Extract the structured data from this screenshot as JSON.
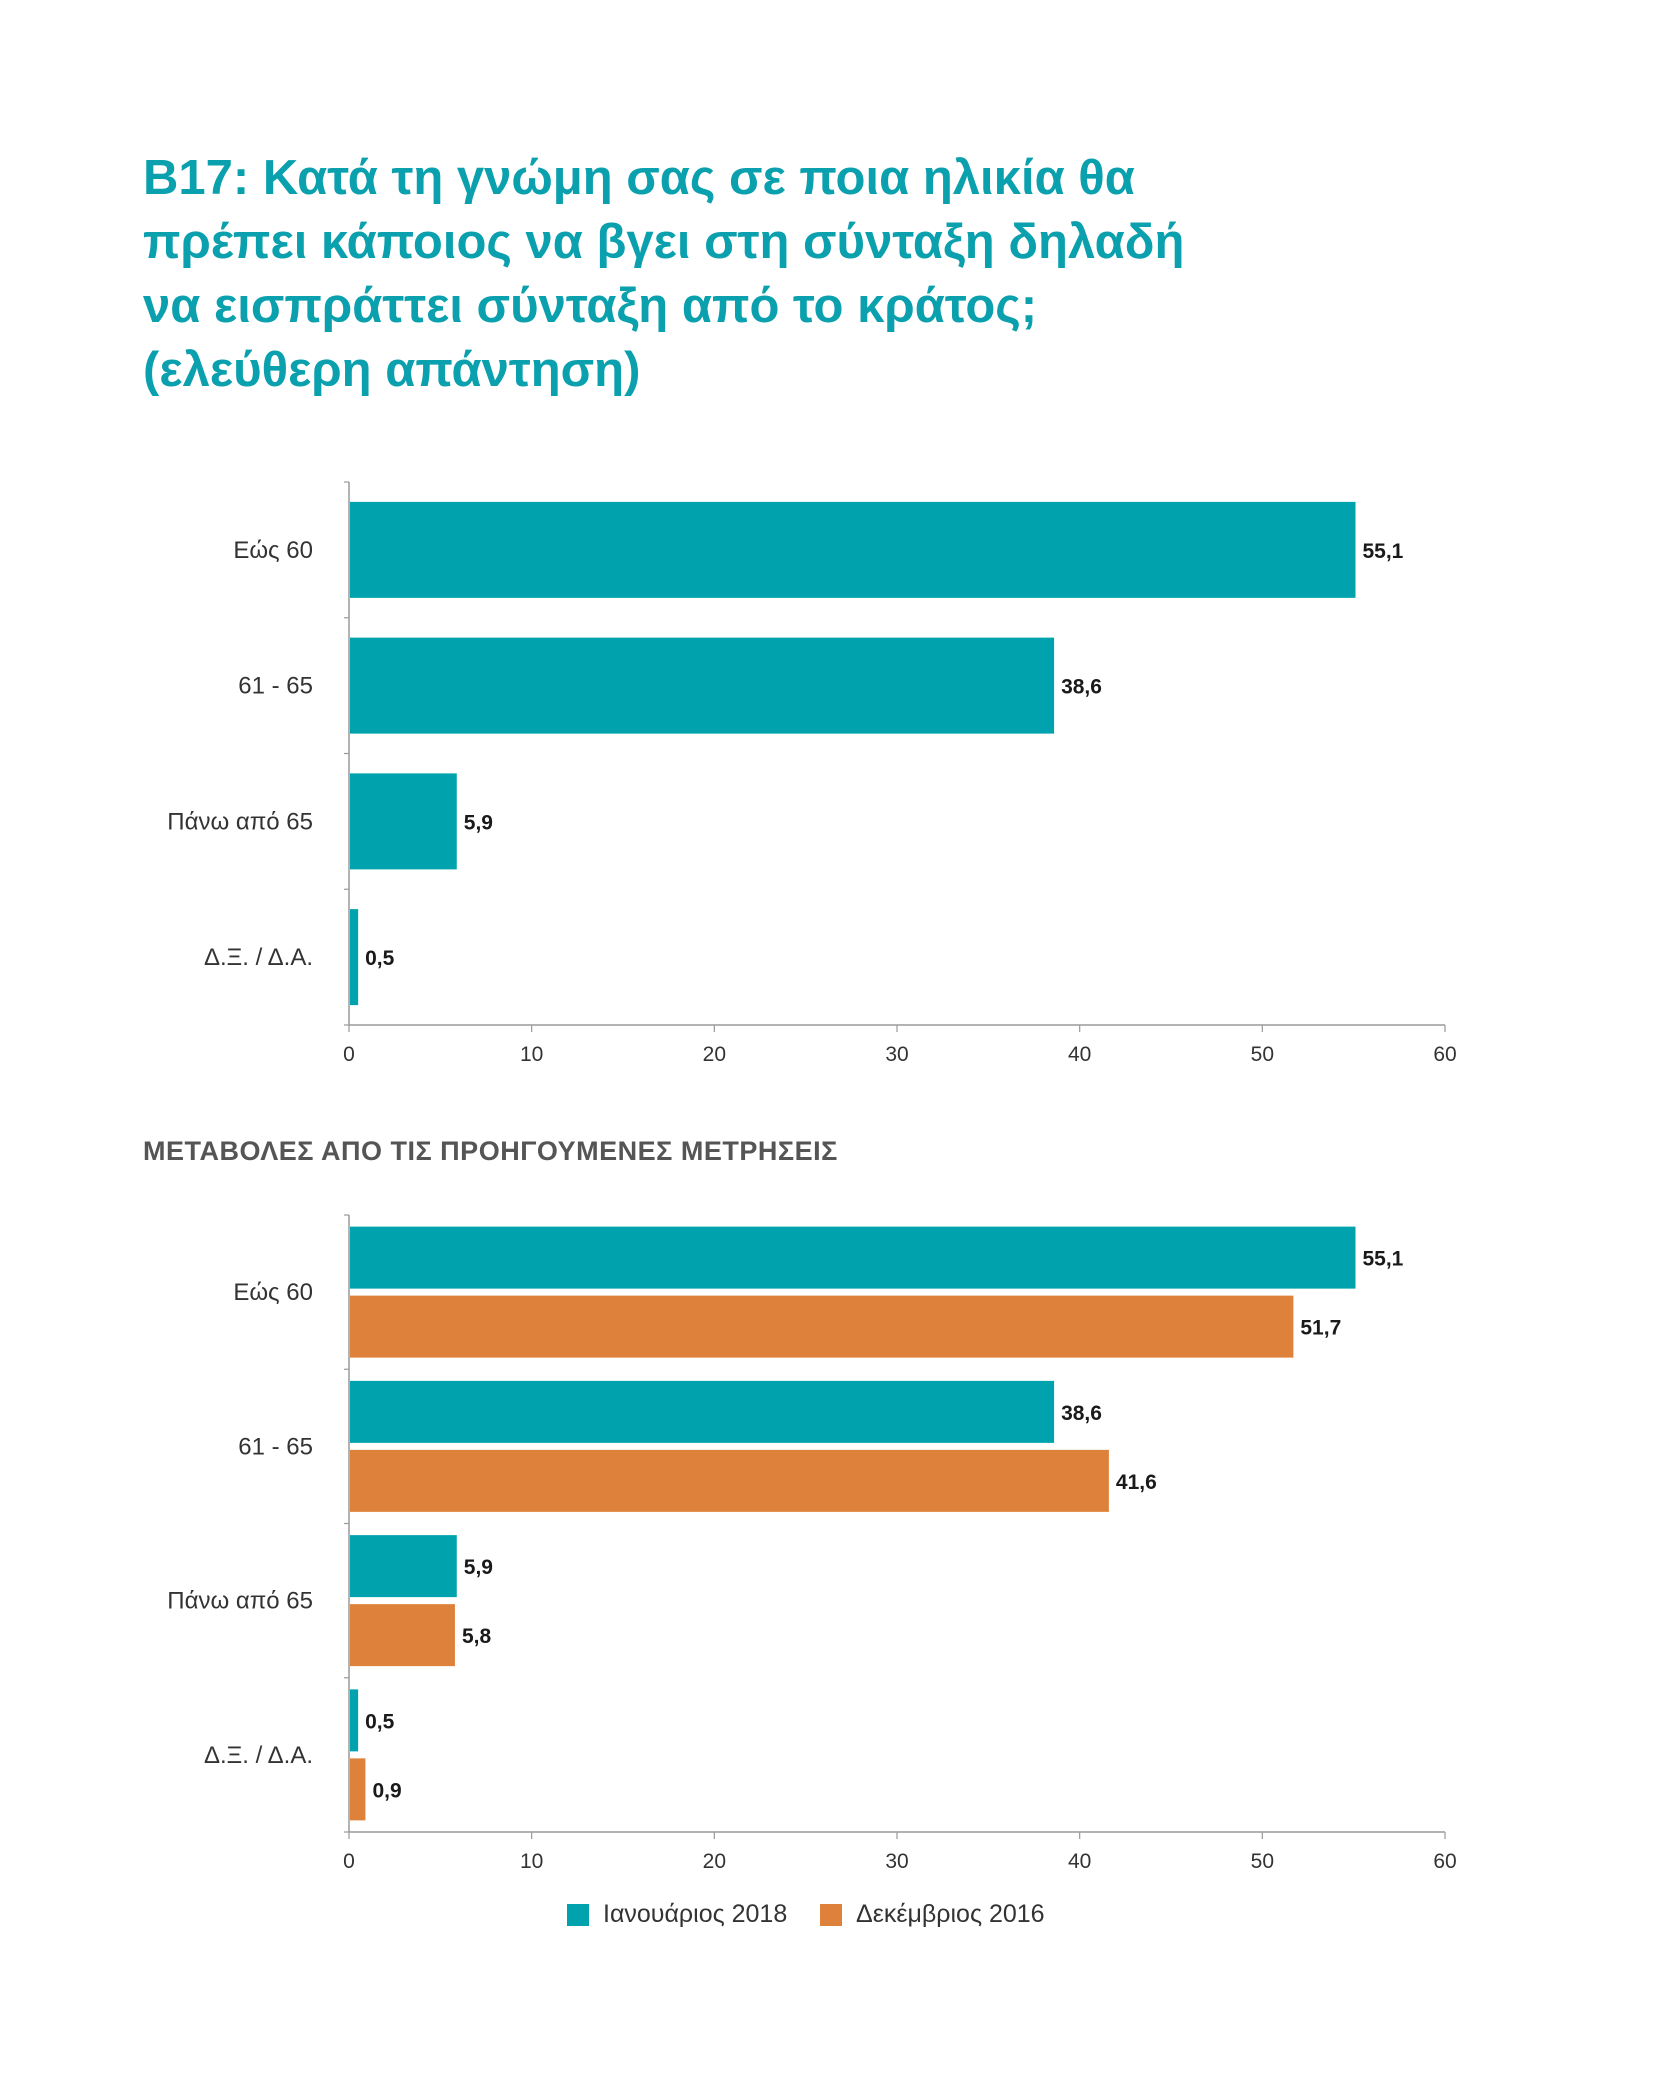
{
  "title": {
    "lines": [
      "B17: Κατά τη γνώμη σας σε ποια ηλικία θα",
      "πρέπει κάποιος να βγει στη σύνταξη δηλαδή",
      "να εισπράττει σύνταξη από το κράτος;",
      "(ελεύθερη απάντηση)"
    ]
  },
  "subtitle": "ΜΕΤΑΒΟΛΕΣ ΑΠΟ ΤΙΣ ΠΡΟΗΓΟΥΜΕΝΕΣ ΜΕΤΡΗΣΕΙΣ",
  "colors": {
    "teal": "#00a3ad",
    "orange": "#de823b",
    "axis": "#999999",
    "title": "#0aa0ad"
  },
  "chart_data": [
    {
      "type": "bar",
      "orientation": "horizontal",
      "categories": [
        "Εώς 60",
        "61 - 65",
        "Πάνω από 65",
        "Δ.Ξ. / Δ.Α."
      ],
      "series": [
        {
          "values": [
            55.1,
            38.6,
            5.9,
            0.5
          ],
          "value_labels": [
            "55,1",
            "38,6",
            "5,9",
            "0,5"
          ],
          "color": "#00a3ad"
        }
      ],
      "xlim": [
        0,
        60
      ],
      "xticks": [
        0,
        10,
        20,
        30,
        40,
        50,
        60
      ],
      "grid": false
    },
    {
      "type": "bar",
      "orientation": "horizontal",
      "categories": [
        "Εώς 60",
        "61 - 65",
        "Πάνω από 65",
        "Δ.Ξ. / Δ.Α."
      ],
      "series": [
        {
          "name": "Ιανουάριος 2018",
          "values": [
            55.1,
            38.6,
            5.9,
            0.5
          ],
          "value_labels": [
            "55,1",
            "38,6",
            "5,9",
            "0,5"
          ],
          "color": "#00a3ad"
        },
        {
          "name": "Δεκέμβριος 2016",
          "values": [
            51.7,
            41.6,
            5.8,
            0.9
          ],
          "value_labels": [
            "51,7",
            "41,6",
            "5,8",
            "0,9"
          ],
          "color": "#de823b"
        }
      ],
      "xlim": [
        0,
        60
      ],
      "xticks": [
        0,
        10,
        20,
        30,
        40,
        50,
        60
      ],
      "legend_position": "bottom",
      "grid": false
    }
  ],
  "legend": [
    {
      "label": "Ιανουάριος 2018",
      "color": "#00a3ad"
    },
    {
      "label": "Δεκέμβριος 2016",
      "color": "#de823b"
    }
  ]
}
